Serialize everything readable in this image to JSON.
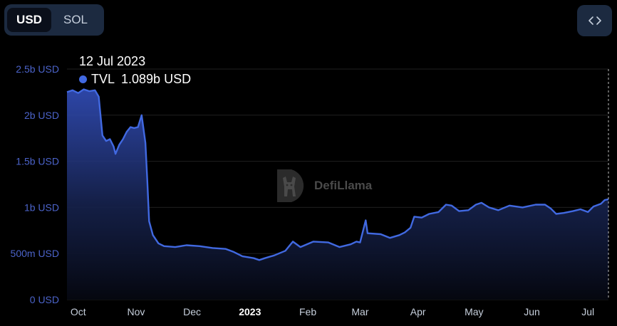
{
  "toolbar": {
    "currencies": [
      "USD",
      "SOL"
    ],
    "selected": "USD",
    "embed_icon": "code-brackets-icon"
  },
  "tooltip": {
    "date": "12 Jul 2023",
    "series": "TVL",
    "value": "1.089b USD"
  },
  "watermark": {
    "text": "DefiLlama",
    "icon": "llama-logo-icon"
  },
  "colors": {
    "line": "#4169e1",
    "axis_text": "#4b63c9",
    "grid": "#1f1f1f",
    "background": "#000000"
  },
  "chart_data": {
    "type": "area",
    "series": [
      {
        "name": "TVL",
        "unit": "USD",
        "points": [
          [
            "2022-09-25",
            2.25
          ],
          [
            "2022-09-28",
            2.27
          ],
          [
            "2022-10-01",
            2.24
          ],
          [
            "2022-10-04",
            2.28
          ],
          [
            "2022-10-07",
            2.26
          ],
          [
            "2022-10-10",
            2.27
          ],
          [
            "2022-10-12",
            2.2
          ],
          [
            "2022-10-14",
            1.78
          ],
          [
            "2022-10-16",
            1.72
          ],
          [
            "2022-10-18",
            1.74
          ],
          [
            "2022-10-20",
            1.66
          ],
          [
            "2022-10-21",
            1.58
          ],
          [
            "2022-10-23",
            1.68
          ],
          [
            "2022-10-25",
            1.74
          ],
          [
            "2022-10-27",
            1.82
          ],
          [
            "2022-10-29",
            1.87
          ],
          [
            "2022-10-31",
            1.86
          ],
          [
            "2022-11-02",
            1.87
          ],
          [
            "2022-11-04",
            2.0
          ],
          [
            "2022-11-06",
            1.7
          ],
          [
            "2022-11-07",
            1.3
          ],
          [
            "2022-11-08",
            0.85
          ],
          [
            "2022-11-10",
            0.7
          ],
          [
            "2022-11-13",
            0.61
          ],
          [
            "2022-11-16",
            0.58
          ],
          [
            "2022-11-22",
            0.57
          ],
          [
            "2022-11-28",
            0.59
          ],
          [
            "2022-12-05",
            0.58
          ],
          [
            "2022-12-12",
            0.56
          ],
          [
            "2022-12-19",
            0.55
          ],
          [
            "2022-12-23",
            0.52
          ],
          [
            "2022-12-28",
            0.47
          ],
          [
            "2023-01-03",
            0.45
          ],
          [
            "2023-01-06",
            0.43
          ],
          [
            "2023-01-09",
            0.45
          ],
          [
            "2023-01-14",
            0.48
          ],
          [
            "2023-01-20",
            0.53
          ],
          [
            "2023-01-24",
            0.63
          ],
          [
            "2023-01-28",
            0.57
          ],
          [
            "2023-02-04",
            0.63
          ],
          [
            "2023-02-12",
            0.62
          ],
          [
            "2023-02-18",
            0.57
          ],
          [
            "2023-02-24",
            0.6
          ],
          [
            "2023-02-27",
            0.63
          ],
          [
            "2023-03-01",
            0.62
          ],
          [
            "2023-03-04",
            0.86
          ],
          [
            "2023-03-05",
            0.72
          ],
          [
            "2023-03-12",
            0.71
          ],
          [
            "2023-03-17",
            0.67
          ],
          [
            "2023-03-22",
            0.7
          ],
          [
            "2023-03-25",
            0.73
          ],
          [
            "2023-03-28",
            0.78
          ],
          [
            "2023-03-30",
            0.9
          ],
          [
            "2023-04-03",
            0.89
          ],
          [
            "2023-04-07",
            0.93
          ],
          [
            "2023-04-12",
            0.95
          ],
          [
            "2023-04-16",
            1.03
          ],
          [
            "2023-04-19",
            1.02
          ],
          [
            "2023-04-23",
            0.96
          ],
          [
            "2023-04-28",
            0.97
          ],
          [
            "2023-05-02",
            1.03
          ],
          [
            "2023-05-05",
            1.05
          ],
          [
            "2023-05-09",
            1.0
          ],
          [
            "2023-05-14",
            0.97
          ],
          [
            "2023-05-20",
            1.02
          ],
          [
            "2023-05-27",
            1.0
          ],
          [
            "2023-06-03",
            1.03
          ],
          [
            "2023-06-08",
            1.03
          ],
          [
            "2023-06-11",
            0.99
          ],
          [
            "2023-06-14",
            0.93
          ],
          [
            "2023-06-18",
            0.94
          ],
          [
            "2023-06-23",
            0.96
          ],
          [
            "2023-06-27",
            0.98
          ],
          [
            "2023-07-01",
            0.95
          ],
          [
            "2023-07-04",
            1.01
          ],
          [
            "2023-07-08",
            1.04
          ],
          [
            "2023-07-10",
            1.08
          ],
          [
            "2023-07-12",
            1.089
          ]
        ]
      }
    ],
    "y_ticks": [
      "0 USD",
      "500m USD",
      "1b USD",
      "1.5b USD",
      "2b USD",
      "2.5b USD"
    ],
    "y_tick_values": [
      0,
      0.5,
      1,
      1.5,
      2,
      2.5
    ],
    "ylim": [
      0,
      2.5
    ],
    "x_ticks": [
      {
        "label": "Oct",
        "date": "2022-10-01"
      },
      {
        "label": "Nov",
        "date": "2022-11-01"
      },
      {
        "label": "Dec",
        "date": "2022-12-01"
      },
      {
        "label": "2023",
        "date": "2023-01-01",
        "bold": true
      },
      {
        "label": "Feb",
        "date": "2023-02-01"
      },
      {
        "label": "Mar",
        "date": "2023-03-01"
      },
      {
        "label": "Apr",
        "date": "2023-04-01"
      },
      {
        "label": "May",
        "date": "2023-05-01"
      },
      {
        "label": "Jun",
        "date": "2023-06-01"
      },
      {
        "label": "Jul",
        "date": "2023-07-01"
      }
    ],
    "xlim": [
      "2022-09-25",
      "2023-07-12"
    ],
    "grid": true,
    "legend": "none"
  }
}
